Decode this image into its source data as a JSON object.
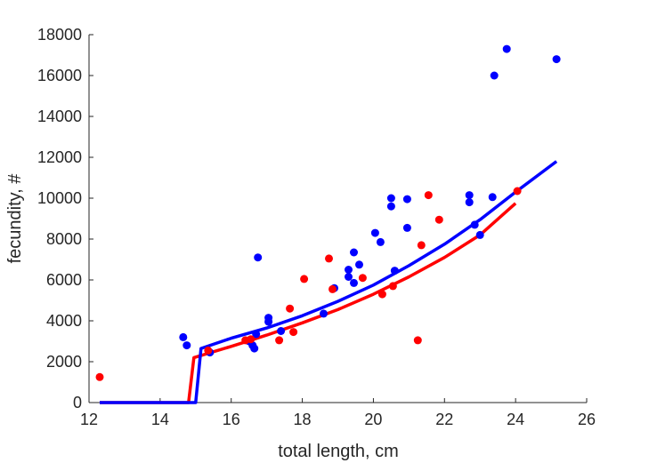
{
  "chart_data": {
    "type": "scatter",
    "xlabel": "total length, cm",
    "ylabel": "fecundity, #",
    "xlim": [
      12,
      26
    ],
    "ylim": [
      0,
      18000
    ],
    "xticks": [
      12,
      14,
      16,
      18,
      20,
      22,
      24,
      26
    ],
    "yticks": [
      0,
      2000,
      4000,
      6000,
      8000,
      10000,
      12000,
      14000,
      16000,
      18000
    ],
    "grid": false,
    "legend": "none",
    "series": [
      {
        "color": "#0000ff",
        "points": [
          [
            14.65,
            3200
          ],
          [
            14.75,
            2800
          ],
          [
            15.4,
            2450
          ],
          [
            16.5,
            3000
          ],
          [
            16.6,
            2800
          ],
          [
            16.65,
            2650
          ],
          [
            16.7,
            3350
          ],
          [
            16.75,
            7100
          ],
          [
            17.05,
            4150
          ],
          [
            17.05,
            3950
          ],
          [
            17.4,
            3500
          ],
          [
            18.6,
            4350
          ],
          [
            18.9,
            5600
          ],
          [
            19.3,
            6500
          ],
          [
            19.3,
            6150
          ],
          [
            19.45,
            7350
          ],
          [
            19.45,
            5850
          ],
          [
            19.6,
            6750
          ],
          [
            20.05,
            8300
          ],
          [
            20.2,
            7850
          ],
          [
            20.5,
            10000
          ],
          [
            20.5,
            9600
          ],
          [
            20.6,
            6450
          ],
          [
            20.95,
            9950
          ],
          [
            20.95,
            8550
          ],
          [
            22.7,
            10150
          ],
          [
            22.7,
            9800
          ],
          [
            22.85,
            8700
          ],
          [
            23.0,
            8200
          ],
          [
            23.35,
            10050
          ],
          [
            23.4,
            16000
          ],
          [
            23.75,
            17300
          ],
          [
            25.15,
            16800
          ]
        ],
        "fit": [
          [
            12.3,
            0
          ],
          [
            15.0,
            0
          ],
          [
            15.15,
            2650
          ],
          [
            16.0,
            3150
          ],
          [
            17.0,
            3650
          ],
          [
            18.0,
            4250
          ],
          [
            19.0,
            4950
          ],
          [
            20.0,
            5750
          ],
          [
            21.0,
            6700
          ],
          [
            22.0,
            7750
          ],
          [
            23.0,
            8950
          ],
          [
            24.0,
            10300
          ],
          [
            25.15,
            11800
          ]
        ]
      },
      {
        "color": "#ff0000",
        "points": [
          [
            12.3,
            1250
          ],
          [
            15.35,
            2550
          ],
          [
            16.4,
            3050
          ],
          [
            16.55,
            3100
          ],
          [
            17.35,
            3050
          ],
          [
            17.65,
            4600
          ],
          [
            17.75,
            3450
          ],
          [
            18.05,
            6050
          ],
          [
            18.75,
            7050
          ],
          [
            18.85,
            5550
          ],
          [
            19.7,
            6100
          ],
          [
            20.25,
            5300
          ],
          [
            20.55,
            5700
          ],
          [
            21.25,
            3050
          ],
          [
            21.35,
            7700
          ],
          [
            21.55,
            10150
          ],
          [
            21.85,
            8950
          ],
          [
            24.05,
            10350
          ]
        ],
        "fit": [
          [
            12.3,
            0
          ],
          [
            14.8,
            0
          ],
          [
            14.95,
            2200
          ],
          [
            16.0,
            2750
          ],
          [
            17.0,
            3300
          ],
          [
            18.0,
            3900
          ],
          [
            19.0,
            4550
          ],
          [
            20.0,
            5300
          ],
          [
            21.0,
            6150
          ],
          [
            22.0,
            7100
          ],
          [
            23.0,
            8200
          ],
          [
            24.0,
            9750
          ]
        ]
      }
    ]
  }
}
